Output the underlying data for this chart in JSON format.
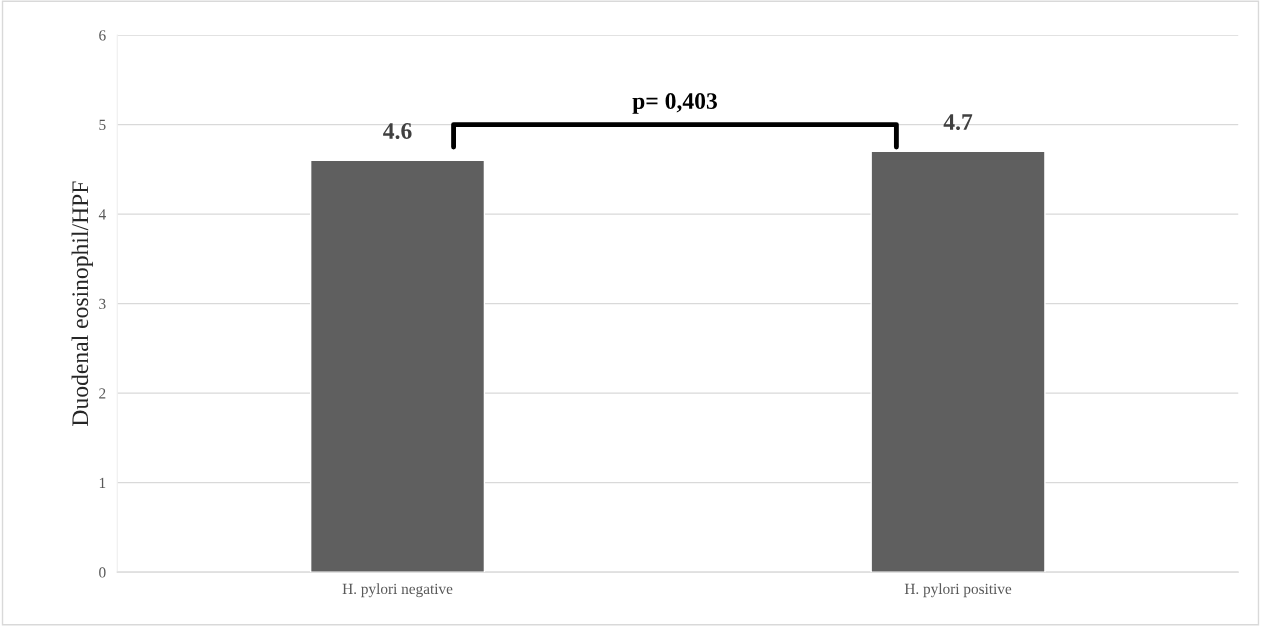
{
  "chart_data": {
    "type": "bar",
    "ylabel": "Duodenal eosinophil/HPF",
    "categories": [
      "H. pylori negative",
      "H. pylori positive"
    ],
    "values": [
      4.6,
      4.7
    ],
    "color": "#5f5f5f",
    "ylim": [
      0,
      6
    ],
    "yticks": [
      0,
      1,
      2,
      3,
      4,
      5,
      6
    ],
    "grid": "y",
    "data_labels": true,
    "annotations": [
      "p= 0,403"
    ]
  }
}
